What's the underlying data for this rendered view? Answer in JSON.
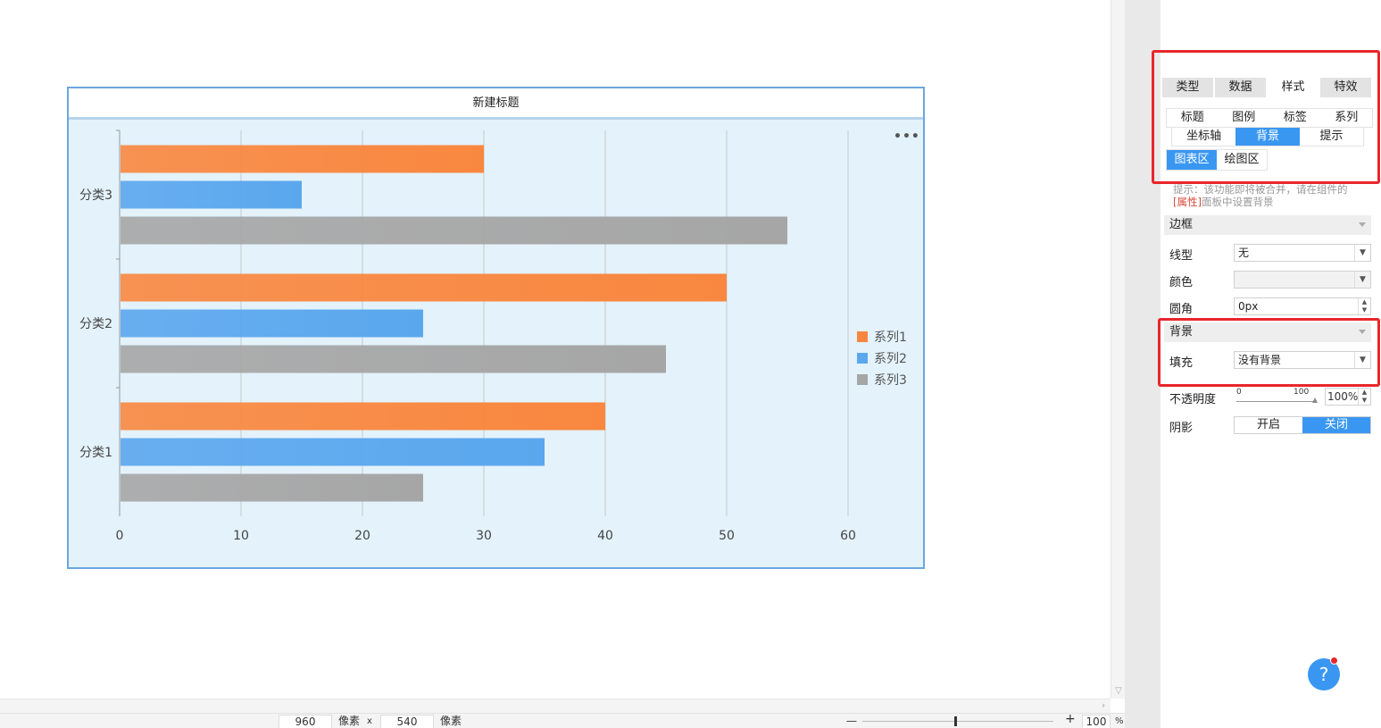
{
  "canvas": {
    "widget_title": "新建标题",
    "more_icon": "•••"
  },
  "chart_data": {
    "type": "bar",
    "orientation": "horizontal",
    "categories": [
      "分类1",
      "分类2",
      "分类3"
    ],
    "series": [
      {
        "name": "系列1",
        "color": "#f9873f",
        "values": [
          40,
          50,
          30
        ]
      },
      {
        "name": "系列2",
        "color": "#5aa7ee",
        "values": [
          35,
          25,
          15
        ]
      },
      {
        "name": "系列3",
        "color": "#a6a6a6",
        "values": [
          25,
          45,
          55
        ]
      }
    ],
    "xlim": [
      0,
      60
    ],
    "xticks": [
      0,
      10,
      20,
      30,
      40,
      50,
      60
    ],
    "grid": true,
    "legend": "right-middle"
  },
  "panel": {
    "main_tabs": [
      {
        "label": "类型",
        "active": false
      },
      {
        "label": "数据",
        "active": false
      },
      {
        "label": "样式",
        "active": true
      },
      {
        "label": "特效",
        "active": false
      }
    ],
    "sub_row1": [
      {
        "label": "标题",
        "active": false
      },
      {
        "label": "图例",
        "active": false
      },
      {
        "label": "标签",
        "active": false
      },
      {
        "label": "系列",
        "active": false
      }
    ],
    "sub_row2": [
      {
        "label": "坐标轴",
        "active": false
      },
      {
        "label": "背景",
        "active": true
      },
      {
        "label": "提示",
        "active": false
      }
    ],
    "sub_row3": [
      {
        "label": "图表区",
        "active": true
      },
      {
        "label": "绘图区",
        "active": false
      }
    ],
    "hint_line1": "提示：该功能即将被合并，请在组件的",
    "hint_highlight": "[属性]",
    "hint_line2": "面板中设置背景",
    "border_section": "边框",
    "line_type_label": "线型",
    "line_type_value": "无",
    "color_label": "颜色",
    "radius_label": "圆角",
    "radius_value": "0px",
    "background_section": "背景",
    "fill_label": "填充",
    "fill_value": "没有背景",
    "opacity_label": "不透明度",
    "opacity_min": "0",
    "opacity_max": "100",
    "opacity_value": "100%",
    "shadow_label": "阴影",
    "shadow_on": "开启",
    "shadow_off": "关闭",
    "help": "?"
  },
  "statusbar": {
    "width": "960",
    "unit1": "像素",
    "times": "x",
    "height": "540",
    "unit2": "像素",
    "zoom_minus": "—",
    "zoom_plus": "+",
    "zoom_value": "100",
    "zoom_unit": "%"
  },
  "colors": {
    "accent": "#3a97f1",
    "highlight_box": "#e8262b",
    "plot_background": "#e3f2fb"
  }
}
